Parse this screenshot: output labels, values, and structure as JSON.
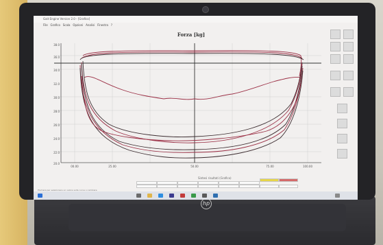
{
  "window": {
    "title": "Gait Engine Version 2.0 - [Grafico]",
    "menu": [
      "File",
      "Grafico",
      "Scala",
      "Opzioni",
      "Analisi",
      "Finestra",
      "?"
    ]
  },
  "chart": {
    "title": "Forza [kg]",
    "y_ticks": [
      "38.0",
      "36.0",
      "34.0",
      "32.0",
      "30.0",
      "28.0",
      "26.0",
      "24.0",
      "22.0",
      "20.0"
    ],
    "x_ticks": [
      "00.00",
      "25.00",
      "50.00",
      "75.00",
      "100.00"
    ],
    "curve_color": "#9b2f45",
    "dark_color": "#3a2a2e"
  },
  "table": {
    "title": "Sintesi risultati (Grafico)"
  },
  "statusbar": {
    "text": "Premere per selezionare un valore sulla curva o cambiare"
  },
  "hardware": {
    "brand": "hp"
  }
}
